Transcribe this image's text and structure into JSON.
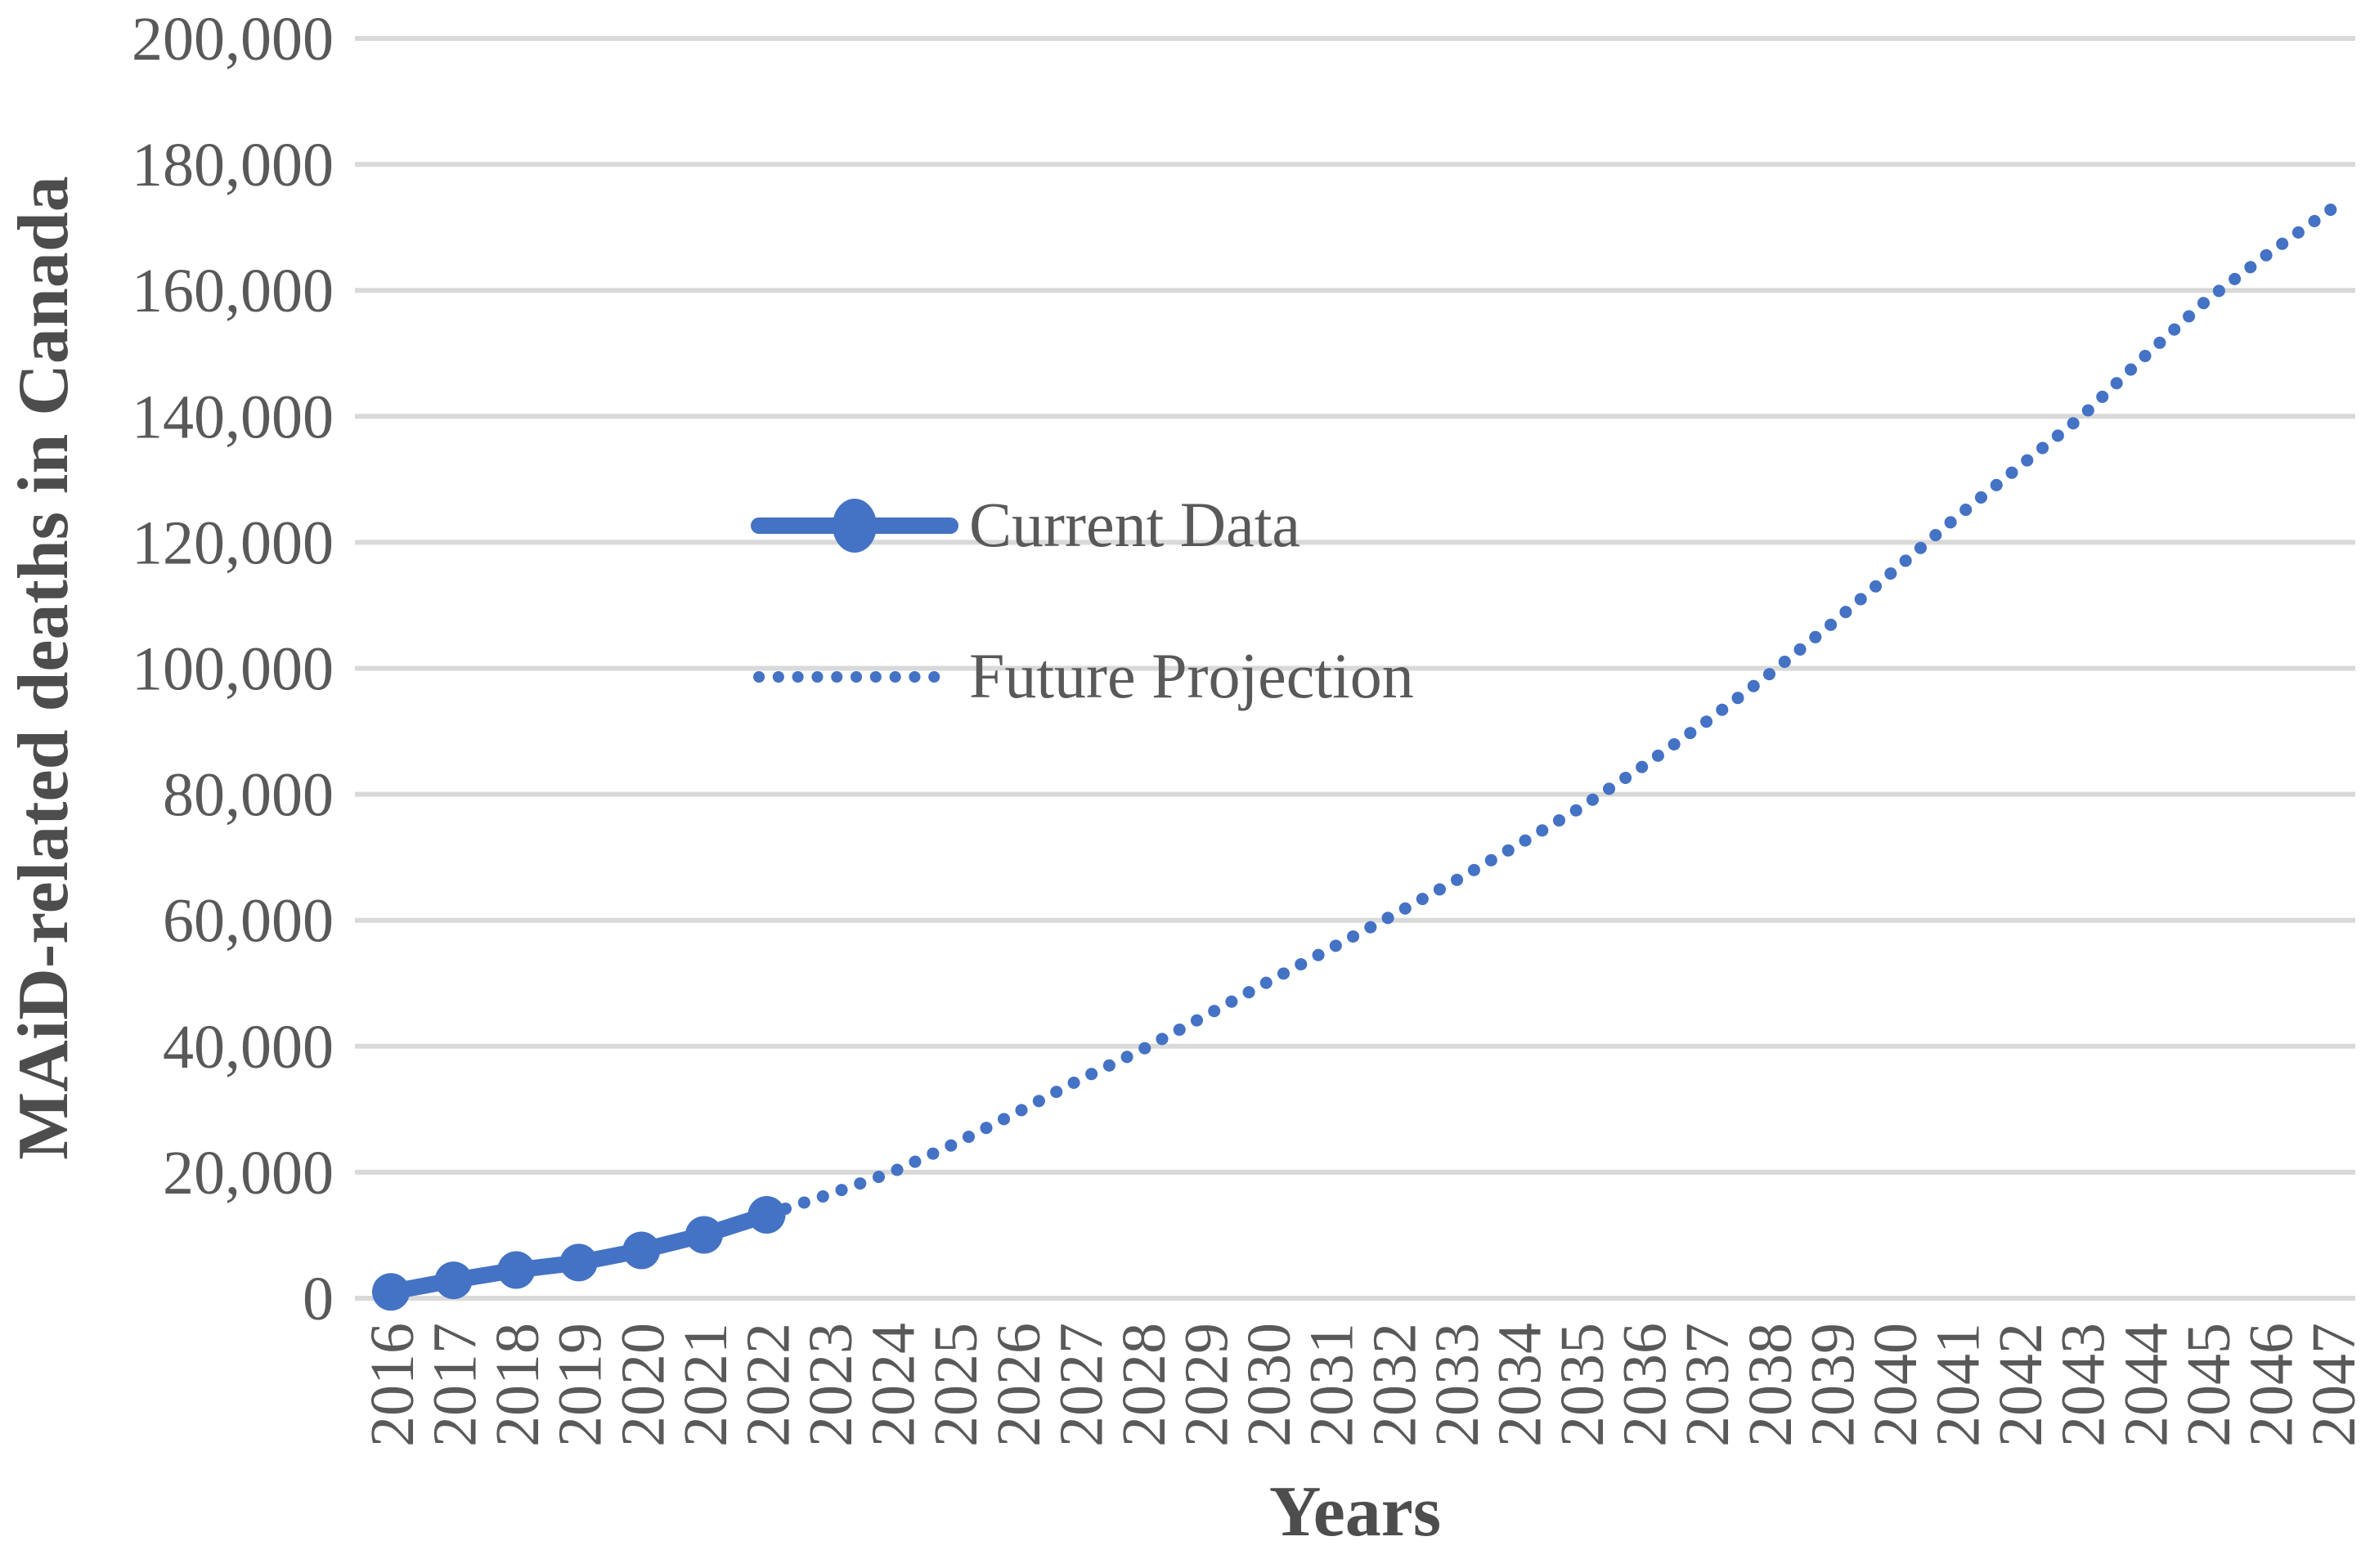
{
  "chart_data": {
    "type": "line",
    "title": "",
    "xlabel": "Years",
    "ylabel": "MAiD-related deaths in Canada",
    "ylim": [
      0,
      200000
    ],
    "y_tick_step": 20000,
    "y_ticks": [
      0,
      20000,
      40000,
      60000,
      80000,
      100000,
      120000,
      140000,
      160000,
      180000,
      200000
    ],
    "y_tick_labels": [
      "0",
      "20,000",
      "40,000",
      "60,000",
      "80,000",
      "100,000",
      "120,000",
      "140,000",
      "160,000",
      "180,000",
      "200,000"
    ],
    "x_tick_labels": [
      "2016",
      "2017",
      "2018",
      "2019",
      "2020",
      "2021",
      "2022",
      "2023",
      "2024",
      "2025",
      "2026",
      "2027",
      "2028",
      "2029",
      "2030",
      "2031",
      "2032",
      "2033",
      "2034",
      "2035",
      "2036",
      "2037",
      "2038",
      "2039",
      "2040",
      "2041",
      "2042",
      "2043",
      "2044",
      "2045",
      "2046",
      "2047"
    ],
    "grid": "horizontal",
    "legend_position": "inside-left-center",
    "series": [
      {
        "name": "Current Data",
        "style": "solid-line-with-round-markers",
        "color": "#4472C4",
        "x": [
          2016,
          2017,
          2018,
          2019,
          2020,
          2021,
          2022
        ],
        "values": [
          1018,
          2838,
          4480,
          5661,
          7595,
          10064,
          13241
        ]
      },
      {
        "name": "Future Projection",
        "style": "dotted-line",
        "color": "#4472C4",
        "x": [
          2022,
          2023,
          2024,
          2025,
          2026,
          2027,
          2028,
          2029,
          2030,
          2031,
          2032,
          2033,
          2034,
          2035,
          2036,
          2037,
          2038,
          2039,
          2040,
          2041,
          2042,
          2043,
          2044,
          2045,
          2046,
          2047
        ],
        "values": [
          13241,
          16500,
          20000,
          24500,
          29500,
          34700,
          39500,
          44800,
          50200,
          55500,
          60800,
          66300,
          72000,
          77900,
          84500,
          91500,
          99000,
          107000,
          115500,
          124000,
          132000,
          140000,
          149500,
          158500,
          166000,
          173000
        ]
      }
    ]
  },
  "colors": {
    "accent": "#4472C4",
    "grid": "#D9D9D9",
    "text": "#595959",
    "background": "#FFFFFF"
  }
}
